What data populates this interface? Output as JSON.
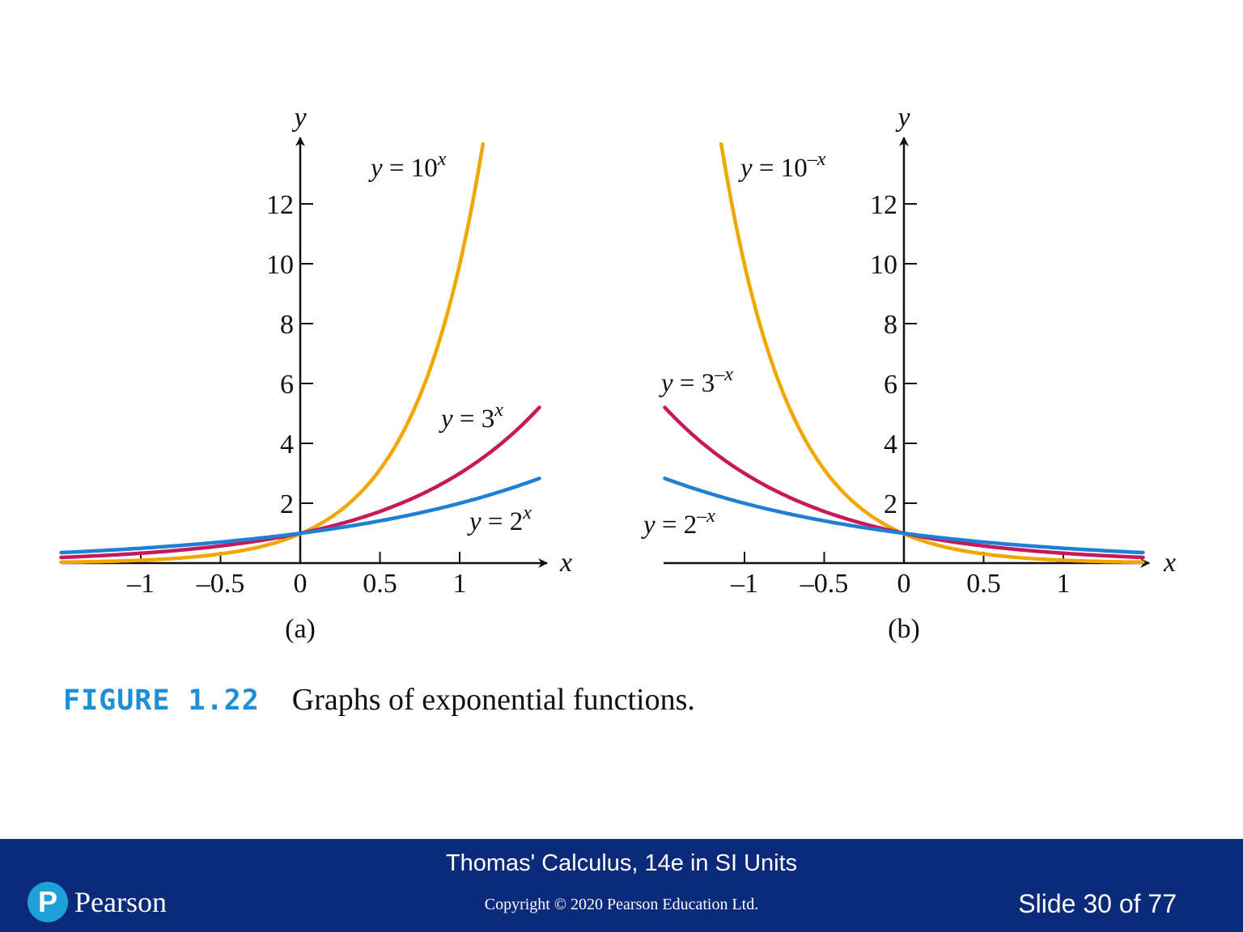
{
  "chart_data": [
    {
      "type": "line",
      "panel_label": "(a)",
      "xlabel": "x",
      "ylabel": "y",
      "xlim": [
        -1.5,
        1.5
      ],
      "ylim": [
        0,
        14
      ],
      "x_ticks": [
        -1,
        -0.5,
        0,
        0.5,
        1
      ],
      "x_tick_labels": [
        "–1",
        "–0.5",
        "0",
        "0.5",
        "1"
      ],
      "y_ticks": [
        2,
        4,
        6,
        8,
        10,
        12
      ],
      "y_tick_labels": [
        "2",
        "4",
        "6",
        "8",
        "10",
        "12"
      ],
      "grid": false,
      "series": [
        {
          "name": "y = 10^x",
          "label_base": "y = 10",
          "label_exp": "x",
          "color": "#f0a800",
          "x": [
            -1.5,
            -1.0,
            -0.5,
            0.0,
            0.5,
            1.0,
            1.146
          ],
          "y": [
            0.03,
            0.1,
            0.32,
            1.0,
            3.16,
            10.0,
            14.0
          ]
        },
        {
          "name": "y = 3^x",
          "label_base": "y = 3",
          "label_exp": "x",
          "color": "#c8175a",
          "x": [
            -1.5,
            -1.0,
            -0.5,
            0.0,
            0.5,
            1.0,
            1.5
          ],
          "y": [
            0.19,
            0.33,
            0.58,
            1.0,
            1.73,
            3.0,
            5.2
          ]
        },
        {
          "name": "y = 2^x",
          "label_base": "y = 2",
          "label_exp": "x",
          "color": "#1e7fd6",
          "x": [
            -1.5,
            -1.0,
            -0.5,
            0.0,
            0.5,
            1.0,
            1.5
          ],
          "y": [
            0.35,
            0.5,
            0.71,
            1.0,
            1.41,
            2.0,
            2.83
          ]
        }
      ]
    },
    {
      "type": "line",
      "panel_label": "(b)",
      "xlabel": "x",
      "ylabel": "y",
      "xlim": [
        -1.5,
        1.5
      ],
      "ylim": [
        0,
        14
      ],
      "x_ticks": [
        -1,
        -0.5,
        0,
        0.5,
        1
      ],
      "x_tick_labels": [
        "–1",
        "–0.5",
        "0",
        "0.5",
        "1"
      ],
      "y_ticks": [
        2,
        4,
        6,
        8,
        10,
        12
      ],
      "y_tick_labels": [
        "2",
        "4",
        "6",
        "8",
        "10",
        "12"
      ],
      "grid": false,
      "series": [
        {
          "name": "y = 10^–x",
          "label_base": "y = 10",
          "label_exp": "–x",
          "color": "#f0a800",
          "x": [
            -1.146,
            -1.0,
            -0.5,
            0.0,
            0.5,
            1.0,
            1.5
          ],
          "y": [
            14.0,
            10.0,
            3.16,
            1.0,
            0.32,
            0.1,
            0.03
          ]
        },
        {
          "name": "y = 3^–x",
          "label_base": "y = 3",
          "label_exp": "–x",
          "color": "#c8175a",
          "x": [
            -1.5,
            -1.0,
            -0.5,
            0.0,
            0.5,
            1.0,
            1.5
          ],
          "y": [
            5.2,
            3.0,
            1.73,
            1.0,
            0.58,
            0.33,
            0.19
          ]
        },
        {
          "name": "y = 2^–x",
          "label_base": "y = 2",
          "label_exp": "–x",
          "color": "#1e7fd6",
          "x": [
            -1.5,
            -1.0,
            -0.5,
            0.0,
            0.5,
            1.0,
            1.5
          ],
          "y": [
            2.83,
            2.0,
            1.41,
            1.0,
            0.71,
            0.5,
            0.35
          ]
        }
      ]
    }
  ],
  "caption": {
    "figure_id": "FIGURE 1.22",
    "text": "Graphs of exponential functions."
  },
  "footer": {
    "title": "Thomas' Calculus, 14e in SI Units",
    "copyright": "Copyright © 2020 Pearson Education Ltd.",
    "slide": "Slide 30 of 77",
    "logo_mark": "P",
    "logo_text": "Pearson"
  }
}
